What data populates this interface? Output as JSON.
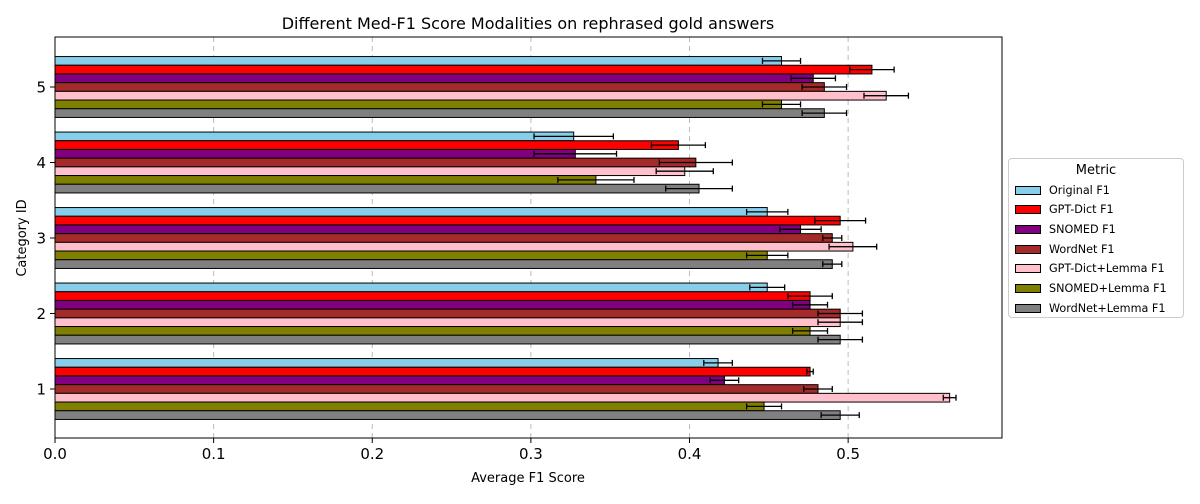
{
  "chart_data": {
    "type": "bar",
    "orientation": "horizontal",
    "title": "Different Med-F1 Score Modalities on rephrased gold answers",
    "xlabel": "Average F1 Score",
    "ylabel": "Category ID",
    "xlim": [
      0.0,
      0.597
    ],
    "xticks": [
      "0.0",
      "0.1",
      "0.2",
      "0.3",
      "0.4",
      "0.5"
    ],
    "categories": [
      "1",
      "2",
      "3",
      "4",
      "5"
    ],
    "grid": "x-dashed",
    "legend_title": "Metric",
    "legend_position": "right",
    "series": [
      {
        "name": "Original F1",
        "color": "#87ceeb",
        "values": [
          0.418,
          0.449,
          0.449,
          0.327,
          0.458
        ],
        "errors": [
          0.009,
          0.011,
          0.013,
          0.025,
          0.012
        ]
      },
      {
        "name": "GPT-Dict F1",
        "color": "#ff0000",
        "values": [
          0.476,
          0.476,
          0.495,
          0.393,
          0.515
        ],
        "errors": [
          0.002,
          0.014,
          0.016,
          0.017,
          0.014
        ]
      },
      {
        "name": "SNOMED F1",
        "color": "#800080",
        "values": [
          0.422,
          0.476,
          0.47,
          0.328,
          0.478
        ],
        "errors": [
          0.009,
          0.011,
          0.013,
          0.026,
          0.014
        ]
      },
      {
        "name": "WordNet F1",
        "color": "#a52a2a",
        "values": [
          0.481,
          0.495,
          0.49,
          0.404,
          0.485
        ],
        "errors": [
          0.009,
          0.014,
          0.006,
          0.023,
          0.014
        ]
      },
      {
        "name": "GPT-Dict+Lemma F1",
        "color": "#ffc0cb",
        "values": [
          0.564,
          0.495,
          0.503,
          0.397,
          0.524
        ],
        "errors": [
          0.004,
          0.014,
          0.015,
          0.018,
          0.014
        ]
      },
      {
        "name": "SNOMED+Lemma F1",
        "color": "#808000",
        "values": [
          0.447,
          0.476,
          0.449,
          0.341,
          0.458
        ],
        "errors": [
          0.011,
          0.011,
          0.013,
          0.024,
          0.012
        ]
      },
      {
        "name": "WordNet+Lemma F1",
        "color": "#808080",
        "values": [
          0.495,
          0.495,
          0.49,
          0.406,
          0.485
        ],
        "errors": [
          0.012,
          0.014,
          0.006,
          0.021,
          0.014
        ]
      }
    ]
  }
}
